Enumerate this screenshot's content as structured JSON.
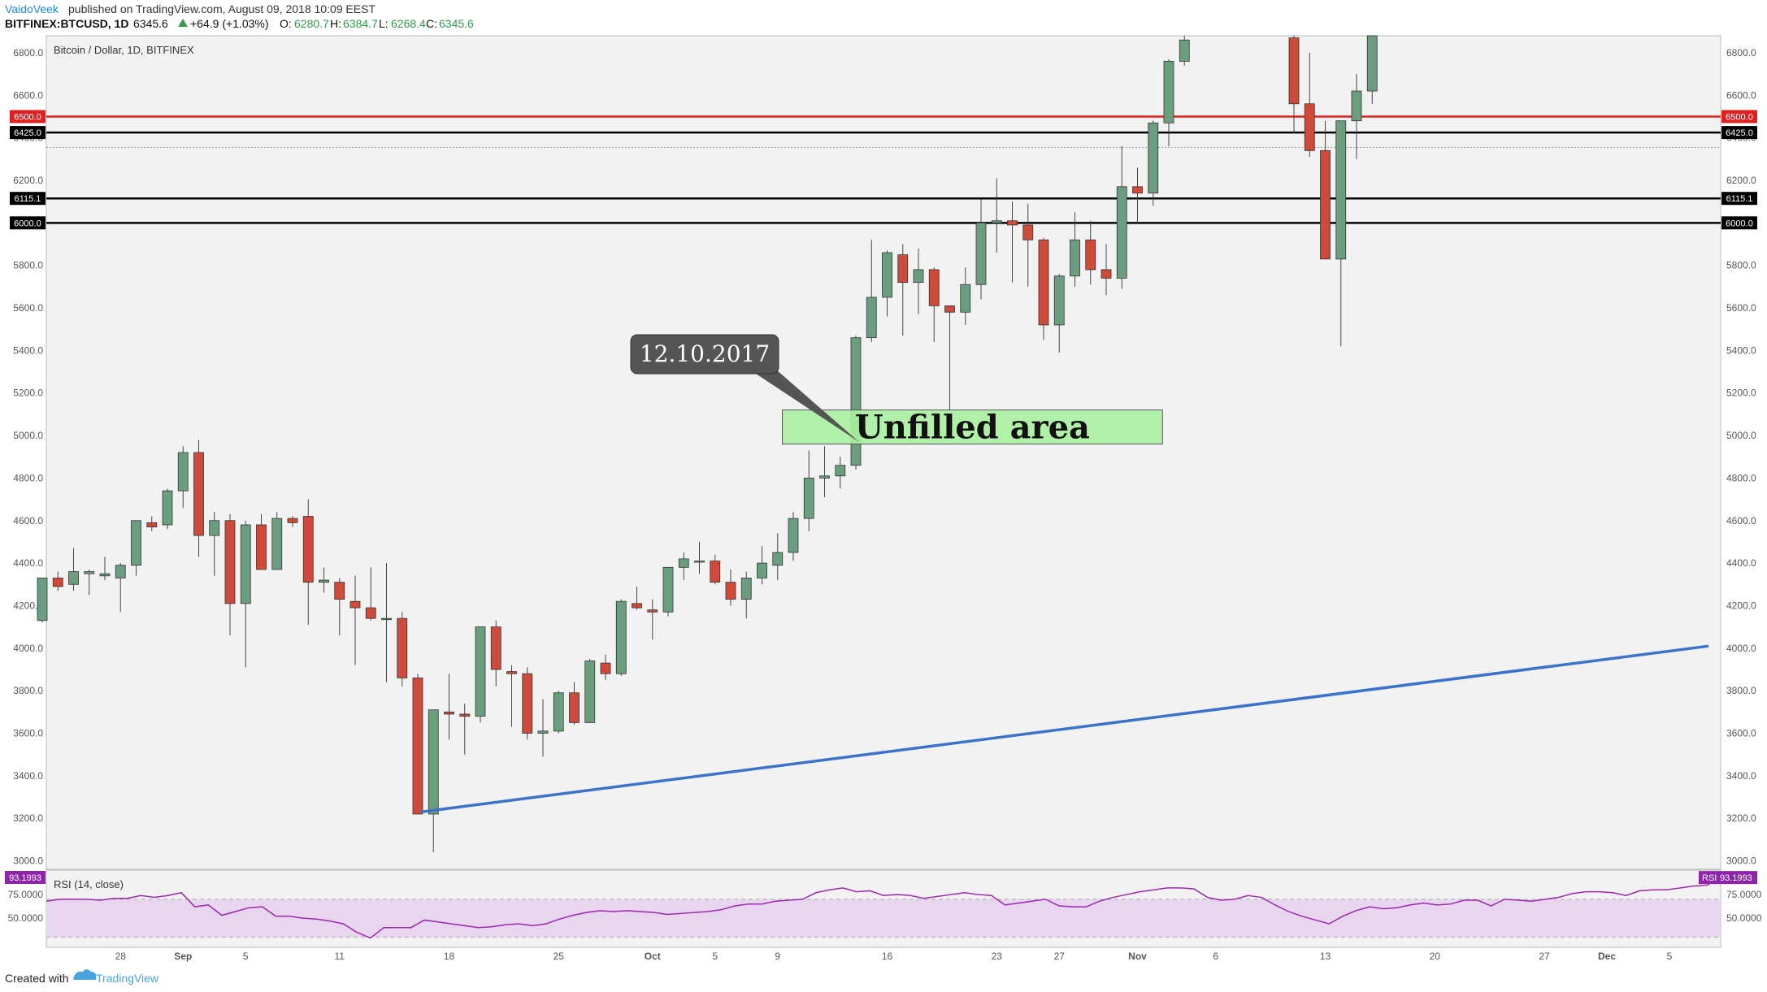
{
  "header": {
    "author": "VaidoVeek",
    "published_text": "published on TradingView.com, August 09, 2018 10:09 EEST",
    "symbol": "BITFINEX:BTCUSD, 1D",
    "last": "6345.6",
    "change": "+64.9 (+1.03%)",
    "o_label": "O:",
    "o": "6280.7",
    "h_label": "H:",
    "h": "6384.7",
    "l_label": "L:",
    "l": "6268.4",
    "c_label": "C:",
    "c": "6345.6"
  },
  "footer": {
    "created_with": "Created with",
    "brand": "TradingView"
  },
  "colors": {
    "up": "#6a9e7f",
    "down": "#d04a3a",
    "resistance": "#e02020",
    "support": "#000000",
    "trend": "#3a73c9",
    "rsi_line": "#9c27b0",
    "rsi_band": "#e8d5f0"
  },
  "chart_data": [
    {
      "type": "candlestick",
      "title": "Bitcoin / Dollar, 1D, BITFINEX",
      "ylim": [
        2960,
        6880
      ],
      "y_ticks": [
        "3000.0",
        "3200.0",
        "3400.0",
        "3600.0",
        "3800.0",
        "4000.0",
        "4200.0",
        "4400.0",
        "4600.0",
        "4800.0",
        "5000.0",
        "5200.0",
        "5400.0",
        "5600.0",
        "5800.0",
        "6000.0",
        "6200.0",
        "6400.0",
        "6600.0",
        "6800.0"
      ],
      "x_labels": [
        {
          "label": "28",
          "x": 5
        },
        {
          "label": "Sep",
          "x": 9
        },
        {
          "label": "5",
          "x": 13
        },
        {
          "label": "11",
          "x": 19
        },
        {
          "label": "18",
          "x": 26
        },
        {
          "label": "25",
          "x": 33
        },
        {
          "label": "Oct",
          "x": 39
        },
        {
          "label": "5",
          "x": 43
        },
        {
          "label": "9",
          "x": 47
        },
        {
          "label": "16",
          "x": 54
        },
        {
          "label": "23",
          "x": 61
        },
        {
          "label": "27",
          "x": 65
        },
        {
          "label": "Nov",
          "x": 70
        },
        {
          "label": "6",
          "x": 75
        },
        {
          "label": "13",
          "x": 82
        },
        {
          "label": "20",
          "x": 89
        },
        {
          "label": "27",
          "x": 96
        },
        {
          "label": "Dec",
          "x": 100
        },
        {
          "label": "5",
          "x": 104
        }
      ],
      "candles": [
        [
          4130,
          4330,
          4120,
          4330
        ],
        [
          4330,
          4360,
          4270,
          4290
        ],
        [
          4300,
          4470,
          4270,
          4360
        ],
        [
          4350,
          4370,
          4250,
          4360
        ],
        [
          4340,
          4430,
          4320,
          4350
        ],
        [
          4330,
          4400,
          4170,
          4390
        ],
        [
          4390,
          4600,
          4340,
          4600
        ],
        [
          4590,
          4620,
          4550,
          4570
        ],
        [
          4580,
          4750,
          4560,
          4740
        ],
        [
          4740,
          4950,
          4660,
          4920
        ],
        [
          4920,
          4980,
          4430,
          4530
        ],
        [
          4530,
          4640,
          4340,
          4600
        ],
        [
          4600,
          4630,
          4060,
          4210
        ],
        [
          4210,
          4600,
          3910,
          4580
        ],
        [
          4580,
          4630,
          4370,
          4370
        ],
        [
          4370,
          4640,
          4370,
          4610
        ],
        [
          4610,
          4620,
          4570,
          4590
        ],
        [
          4620,
          4700,
          4110,
          4310
        ],
        [
          4310,
          4380,
          4260,
          4320
        ],
        [
          4310,
          4330,
          4060,
          4230
        ],
        [
          4220,
          4340,
          3920,
          4190
        ],
        [
          4190,
          4380,
          4130,
          4140
        ],
        [
          4140,
          4400,
          3840,
          4140
        ],
        [
          4140,
          4170,
          3820,
          3860
        ],
        [
          3860,
          3880,
          3240,
          3220
        ],
        [
          3220,
          3710,
          3040,
          3710
        ],
        [
          3700,
          3880,
          3570,
          3690
        ],
        [
          3690,
          3740,
          3500,
          3680
        ],
        [
          3680,
          4100,
          3650,
          4100
        ],
        [
          4100,
          4130,
          3820,
          3900
        ],
        [
          3890,
          3920,
          3630,
          3880
        ],
        [
          3880,
          3910,
          3570,
          3600
        ],
        [
          3600,
          3760,
          3490,
          3610
        ],
        [
          3610,
          3800,
          3600,
          3790
        ],
        [
          3790,
          3840,
          3640,
          3650
        ],
        [
          3650,
          3950,
          3650,
          3940
        ],
        [
          3930,
          3970,
          3850,
          3880
        ],
        [
          3880,
          4230,
          3870,
          4220
        ],
        [
          4210,
          4290,
          4180,
          4190
        ],
        [
          4180,
          4230,
          4040,
          4170
        ],
        [
          4170,
          4380,
          4150,
          4380
        ],
        [
          4380,
          4450,
          4320,
          4420
        ],
        [
          4410,
          4500,
          4350,
          4410
        ],
        [
          4410,
          4440,
          4300,
          4310
        ],
        [
          4310,
          4370,
          4200,
          4230
        ],
        [
          4230,
          4360,
          4140,
          4330
        ],
        [
          4330,
          4480,
          4300,
          4400
        ],
        [
          4390,
          4540,
          4320,
          4450
        ],
        [
          4450,
          4640,
          4410,
          4610
        ],
        [
          4610,
          4930,
          4550,
          4800
        ],
        [
          4800,
          4950,
          4710,
          4810
        ],
        [
          4810,
          4900,
          4750,
          4860
        ],
        [
          4860,
          5470,
          4840,
          5460
        ],
        [
          5460,
          5920,
          5440,
          5650
        ],
        [
          5650,
          5870,
          5560,
          5860
        ],
        [
          5850,
          5900,
          5470,
          5720
        ],
        [
          5720,
          5880,
          5570,
          5780
        ],
        [
          5780,
          5790,
          5440,
          5610
        ],
        [
          5610,
          5600,
          5120,
          5580
        ],
        [
          5580,
          5790,
          5520,
          5710
        ],
        [
          5710,
          6110,
          5640,
          6000
        ],
        [
          6000,
          6210,
          5860,
          6010
        ],
        [
          6010,
          6100,
          5720,
          5990
        ],
        [
          5990,
          6090,
          5700,
          5920
        ],
        [
          5920,
          5930,
          5450,
          5520
        ],
        [
          5520,
          5760,
          5390,
          5750
        ],
        [
          5750,
          6050,
          5700,
          5920
        ],
        [
          5920,
          6010,
          5710,
          5780
        ],
        [
          5780,
          5900,
          5660,
          5740
        ],
        [
          5740,
          6360,
          5690,
          6170
        ],
        [
          6170,
          6260,
          6000,
          6140
        ],
        [
          6140,
          6480,
          6080,
          6470
        ],
        [
          6470,
          6770,
          6360,
          6760
        ],
        [
          6760,
          6900,
          6740,
          6860
        ],
        null,
        null,
        null,
        null,
        null,
        null,
        [
          6870,
          6930,
          6420,
          6560
        ],
        [
          6560,
          6800,
          6310,
          6340
        ],
        [
          6340,
          6480,
          6170,
          5830
        ],
        [
          5830,
          6450,
          5420,
          6480
        ],
        [
          6480,
          6700,
          6300,
          6620
        ],
        [
          6620,
          6890,
          6560,
          6900
        ]
      ],
      "levels": [
        {
          "value": 6500,
          "label": "6500.0",
          "color": "#e02020"
        },
        {
          "value": 6425,
          "label": "6425.0",
          "color": "#000000"
        },
        {
          "value": 6115.1,
          "label": "6115.1",
          "color": "#000000"
        },
        {
          "value": 6000,
          "label": "6000.0",
          "color": "#000000"
        }
      ],
      "dotted_level": 6355,
      "trendline": {
        "x1": 24.2,
        "y1": 3230,
        "x2": 106.5,
        "y2": 4010
      },
      "annotations": {
        "callout_text": "12.10.2017",
        "callout_target": {
          "x": 52.2,
          "y": 4970
        },
        "area_text": "Unfilled area",
        "area": {
          "x1": 47.3,
          "x2": 71.6,
          "y_low": 4960,
          "y_high": 5120
        }
      }
    },
    {
      "type": "line",
      "title": "RSI (14, close)",
      "ylim": [
        20,
        100
      ],
      "y_ticks": [
        "50.0000",
        "75.0000"
      ],
      "band": [
        30,
        70
      ],
      "last_value": "93.1993",
      "badge_label": "RSI",
      "series": [
        {
          "values": [
            68,
            70,
            70,
            70,
            69,
            71,
            71,
            74,
            72,
            74,
            77,
            62,
            64,
            53,
            57,
            61,
            62,
            52,
            52,
            50,
            49,
            47,
            44,
            35,
            29,
            40,
            40,
            40,
            48,
            46,
            44,
            42,
            40,
            41,
            43,
            44,
            42,
            44,
            49,
            53,
            56,
            58,
            57,
            58,
            57,
            56,
            54,
            55,
            56,
            57,
            59,
            63,
            65,
            65,
            68,
            69,
            70,
            77,
            80,
            82,
            78,
            79,
            74,
            75,
            74,
            71,
            73,
            75,
            77,
            75,
            74,
            64,
            66,
            68,
            70,
            63,
            62,
            62,
            68,
            72,
            75,
            78,
            80,
            82,
            82,
            81,
            72,
            69,
            70,
            74,
            72,
            64,
            57,
            52,
            48,
            44,
            52,
            58,
            62,
            60,
            61,
            64,
            66,
            64,
            65,
            69,
            69,
            63,
            70,
            69,
            68,
            70,
            72,
            76,
            78,
            78,
            77,
            74,
            79,
            80,
            80,
            82,
            84,
            85,
            93
          ]
        }
      ]
    }
  ]
}
